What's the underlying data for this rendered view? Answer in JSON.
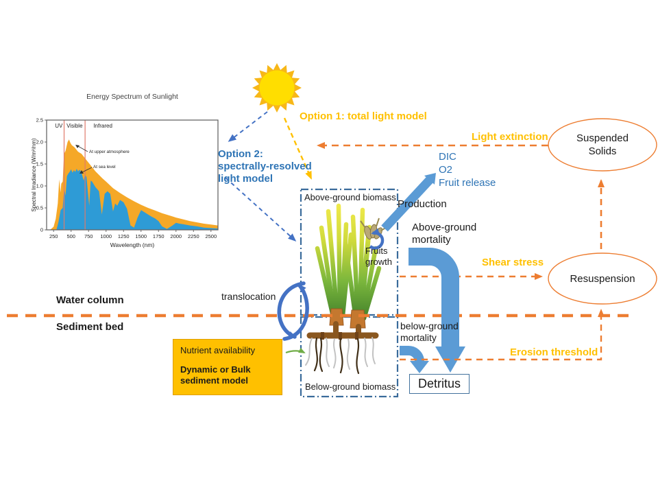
{
  "colors": {
    "accent_orange": "#ED7D31",
    "accent_gold": "#FFC000",
    "blue_text": "#2E74B5",
    "thick_arrow_blue": "#5B9BD5",
    "dashed_blue": "#4472C4",
    "box_border_blue": "#3A6B9B",
    "green_arrow": "#70AD47",
    "sun_ray": "#F7B718",
    "sun_disk": "#FFDE00",
    "nutrient_fill": "#FFC000"
  },
  "chart_data": {
    "type": "area",
    "title": "Energy Spectrum of Sunlight",
    "xlabel": "Wavelength (nm)",
    "ylabel": "Spectral Irradiance (W/m²/nm)",
    "xlim": [
      150,
      2600
    ],
    "ylim": [
      0,
      2.5
    ],
    "x_ticks": [
      250,
      500,
      750,
      1000,
      1250,
      1500,
      1750,
      2000,
      2250,
      2500
    ],
    "y_ticks": [
      "0",
      "0.5",
      "1.0",
      "1.5",
      "2.0",
      "2.5"
    ],
    "grid": false,
    "legend_position": "inline-annotations",
    "regions": {
      "labels": [
        "UV",
        "Visible",
        "Infrared"
      ],
      "boundaries_nm": [
        400,
        700
      ]
    },
    "series": [
      {
        "name": "At upper atmosphere",
        "color": "#F5A828",
        "x": [
          200,
          250,
          280,
          300,
          310,
          330,
          350,
          360,
          380,
          395,
          400,
          420,
          450,
          470,
          490,
          510,
          550,
          600,
          650,
          700,
          750,
          800,
          850,
          900,
          950,
          1000,
          1100,
          1200,
          1300,
          1400,
          1500,
          1600,
          1700,
          1800,
          1900,
          2000,
          2100,
          2200,
          2300,
          2400,
          2500,
          2600
        ],
        "values": [
          0,
          0.07,
          0.25,
          0.48,
          0.6,
          1.15,
          0.85,
          1.05,
          1.1,
          1.6,
          1.73,
          1.8,
          2.0,
          2.06,
          1.98,
          1.93,
          1.88,
          1.78,
          1.73,
          1.63,
          1.53,
          1.43,
          1.33,
          1.25,
          1.17,
          1.1,
          0.95,
          0.84,
          0.74,
          0.65,
          0.57,
          0.5,
          0.44,
          0.38,
          0.33,
          0.28,
          0.24,
          0.2,
          0.17,
          0.14,
          0.12,
          0.1
        ]
      },
      {
        "name": "At sea level",
        "color": "#2E9BD6",
        "x": [
          290,
          320,
          350,
          380,
          400,
          420,
          440,
          460,
          480,
          500,
          520,
          540,
          560,
          580,
          600,
          620,
          650,
          680,
          700,
          720,
          760,
          780,
          800,
          850,
          900,
          940,
          980,
          1020,
          1060,
          1100,
          1130,
          1160,
          1200,
          1250,
          1300,
          1350,
          1400,
          1450,
          1500,
          1550,
          1600,
          1650,
          1700,
          1750,
          1800,
          1870,
          1950,
          2000,
          2050,
          2100,
          2200,
          2300,
          2400,
          2500,
          2600
        ],
        "values": [
          0,
          0.18,
          0.45,
          0.5,
          0.95,
          0.78,
          1.22,
          1.28,
          1.32,
          1.38,
          1.3,
          1.36,
          1.32,
          1.39,
          1.33,
          1.37,
          1.3,
          1.12,
          1.26,
          1.2,
          0.55,
          1.12,
          1.1,
          0.97,
          0.88,
          0.35,
          0.82,
          0.88,
          0.82,
          0.42,
          0.6,
          0.55,
          0.68,
          0.63,
          0.48,
          0.1,
          0.05,
          0.28,
          0.45,
          0.4,
          0.35,
          0.3,
          0.26,
          0.2,
          0.08,
          0.02,
          0.1,
          0.16,
          0.14,
          0.13,
          0.1,
          0.08,
          0.05,
          0.04,
          0.03
        ]
      }
    ]
  },
  "options": {
    "option1": "Option 1: total light model",
    "option2": "Option 2: spectrally-resolved light model"
  },
  "fluxes": {
    "light_extinction": "Light extinction",
    "shear_stress": "Shear stress",
    "erosion_threshold": "Erosion threshold",
    "dic": "DIC",
    "o2": "O2",
    "fruit_release": "Fruit release",
    "production": "Production",
    "above_mortality": "Above-ground mortality",
    "below_mortality": "below-ground mortality",
    "translocation": "translocation",
    "fruits_growth": "Fruits growth"
  },
  "zones": {
    "water_column": "Water column",
    "sediment_bed": "Sediment bed"
  },
  "boxes": {
    "above_ground": "Above-ground biomass",
    "below_ground": "Below-ground biomass",
    "detritus": "Detritus"
  },
  "nutrient_box": {
    "line1": "Nutrient availability",
    "line2": "Dynamic or Bulk sediment model"
  },
  "ellipses": {
    "suspended_solids": "Suspended Solids",
    "resuspension": "Resuspension"
  }
}
